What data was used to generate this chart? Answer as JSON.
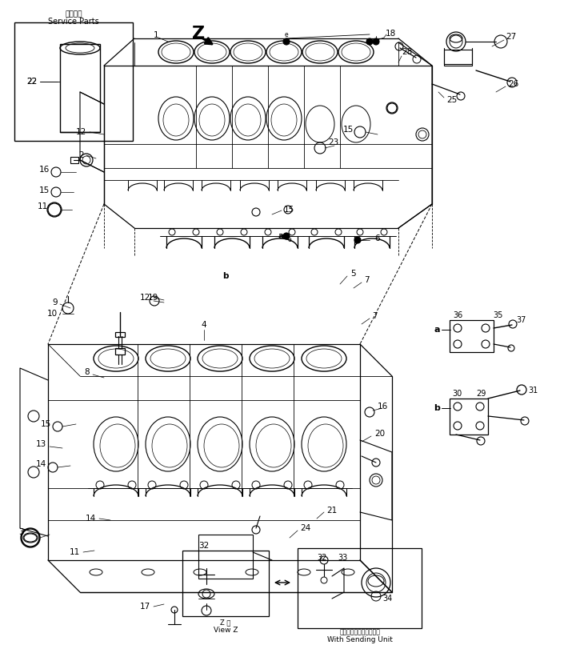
{
  "bg_color": "#ffffff",
  "line_color": "#000000",
  "fig_width": 7.1,
  "fig_height": 8.26,
  "dpi": 100,
  "service_parts_jp": "補紝専用",
  "service_parts_en": "Service Parts",
  "view_z_jp": "Z 構",
  "view_z_en": "View Z",
  "sending_unit_jp": "センディングユニット付",
  "sending_unit_en": "With Sending Unit"
}
